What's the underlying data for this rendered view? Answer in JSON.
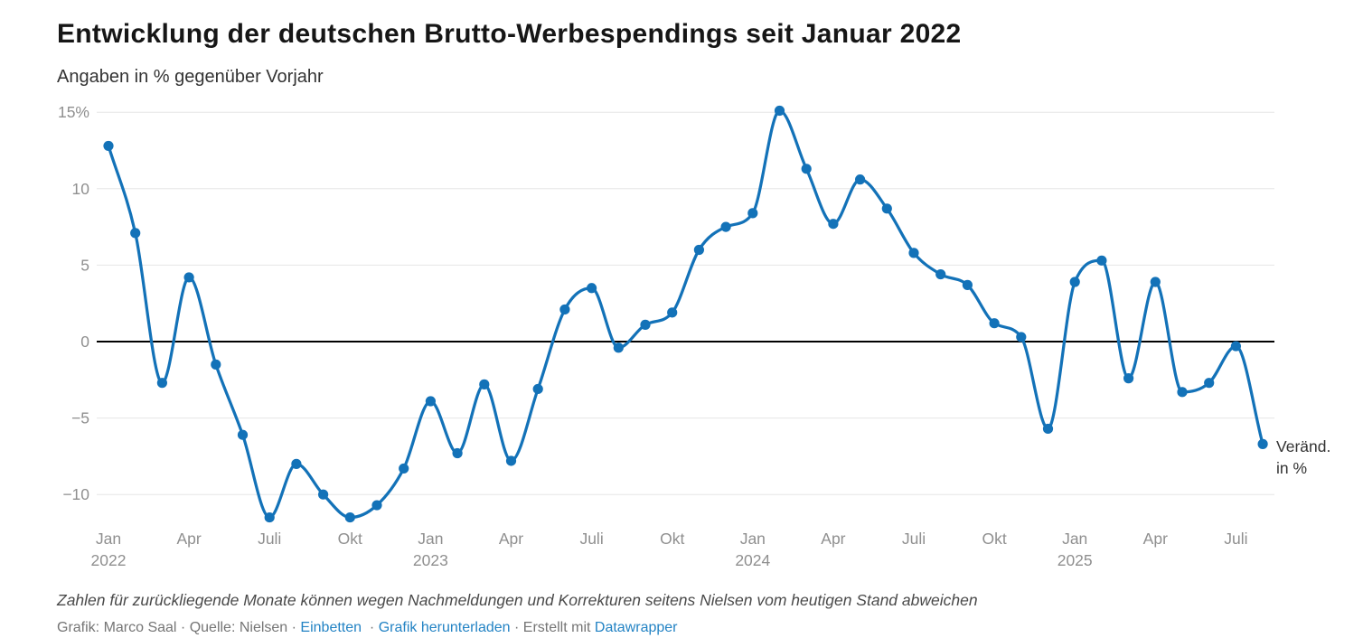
{
  "header": {
    "title": "Entwicklung der deutschen Brutto-Werbespendings seit Januar 2022",
    "subtitle": "Angaben in % gegenüber Vorjahr"
  },
  "chart_data": {
    "type": "line",
    "title": "Entwicklung der deutschen Brutto-Werbespendings seit Januar 2022",
    "subtitle": "Angaben in % gegenüber Vorjahr",
    "x_months": [
      "2022-01",
      "2022-02",
      "2022-03",
      "2022-04",
      "2022-05",
      "2022-06",
      "2022-07",
      "2022-08",
      "2022-09",
      "2022-10",
      "2022-11",
      "2022-12",
      "2023-01",
      "2023-02",
      "2023-03",
      "2023-04",
      "2023-05",
      "2023-06",
      "2023-07",
      "2023-08",
      "2023-09",
      "2023-10",
      "2023-11",
      "2023-12",
      "2024-01",
      "2024-02",
      "2024-03",
      "2024-04",
      "2024-05",
      "2024-06",
      "2024-07",
      "2024-08",
      "2024-09",
      "2024-10",
      "2024-11",
      "2024-12",
      "2025-01",
      "2025-02",
      "2025-03",
      "2025-04",
      "2025-05",
      "2025-06",
      "2025-07",
      "2025-08"
    ],
    "values": [
      12.8,
      7.1,
      -2.7,
      4.2,
      -1.5,
      -6.1,
      -11.5,
      -8.0,
      -10.0,
      -11.5,
      -10.7,
      -8.3,
      -3.9,
      -7.3,
      -2.8,
      -7.8,
      -3.1,
      2.1,
      3.5,
      -0.4,
      1.1,
      1.9,
      6.0,
      7.5,
      8.4,
      15.1,
      11.3,
      7.7,
      10.6,
      8.7,
      5.8,
      4.4,
      3.7,
      1.2,
      0.3,
      -5.7,
      3.9,
      5.3,
      -2.4,
      3.9,
      -3.3,
      -2.7,
      -0.3,
      -6.7
    ],
    "ylim": [
      -12,
      16
    ],
    "yticks": [
      15,
      10,
      5,
      0,
      -5,
      -10
    ],
    "ytick_labels": [
      "15%",
      "10",
      "5",
      "0",
      "−5",
      "−10"
    ],
    "xticks": [
      {
        "i": 0,
        "m": "Jan",
        "y": "2022"
      },
      {
        "i": 3,
        "m": "Apr"
      },
      {
        "i": 6,
        "m": "Juli"
      },
      {
        "i": 9,
        "m": "Okt"
      },
      {
        "i": 12,
        "m": "Jan",
        "y": "2023"
      },
      {
        "i": 15,
        "m": "Apr"
      },
      {
        "i": 18,
        "m": "Juli"
      },
      {
        "i": 21,
        "m": "Okt"
      },
      {
        "i": 24,
        "m": "Jan",
        "y": "2024"
      },
      {
        "i": 27,
        "m": "Apr"
      },
      {
        "i": 30,
        "m": "Juli"
      },
      {
        "i": 33,
        "m": "Okt"
      },
      {
        "i": 36,
        "m": "Jan",
        "y": "2025"
      },
      {
        "i": 39,
        "m": "Apr"
      },
      {
        "i": 42,
        "m": "Juli"
      }
    ],
    "series_label_lines": [
      "Veränd.",
      "in %"
    ],
    "grid": true,
    "legend_position": "right-of-last-point",
    "line_color": "#1372b8",
    "zero_line_color": "#000000",
    "grid_color": "#e6e6e6",
    "axis_label_color": "#8f8f8f",
    "series_label_color": "#333333"
  },
  "footer": {
    "note": "Zahlen für zurückliegende Monate können wegen Nachmeldungen und Korrekturen seitens Nielsen vom heutigen Stand abweichen",
    "credit_prefix": "Grafik: Marco Saal · Quelle: Nielsen · ",
    "embed": "Einbetten",
    "sep1": "  · ",
    "download": "Grafik herunterladen",
    "sep2": " · Erstellt mit ",
    "brand": "Datawrapper",
    "link_color": "#2383c4"
  }
}
